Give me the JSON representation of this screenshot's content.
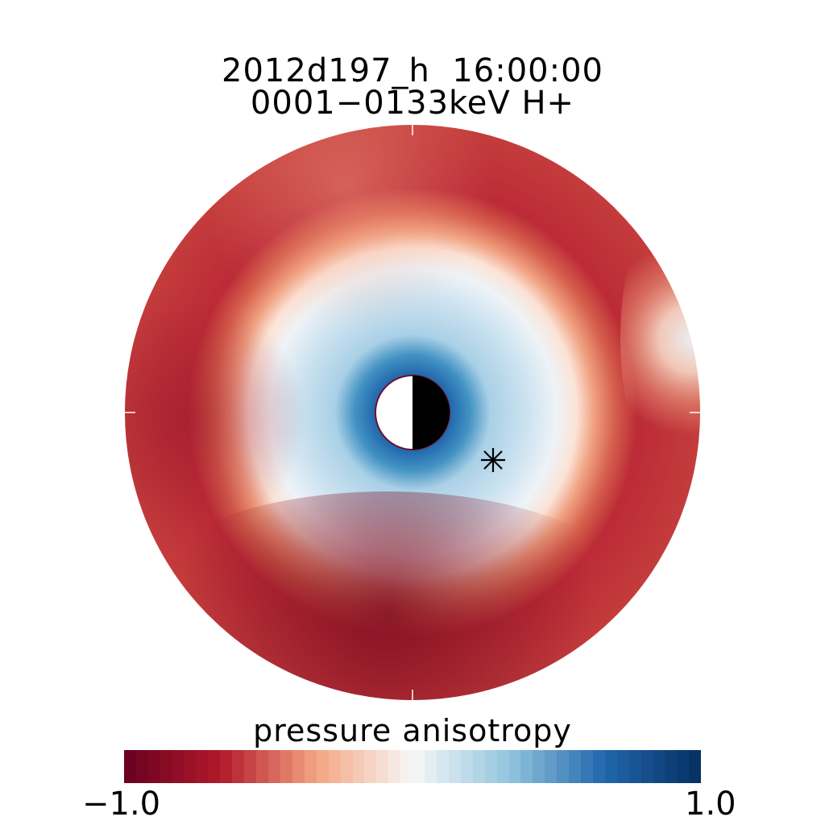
{
  "figure": {
    "title_line1": "2012d197_h  16:00:00",
    "title_line2": "0001−0133keV H+"
  },
  "chart_data": {
    "type": "heatmap",
    "projection": "polar equatorial plane",
    "title": "2012d197_h  16:00:00",
    "subtitle": "0001−0133keV H+",
    "colorbar": {
      "label": "pressure anisotropy",
      "min_label": "−1.0",
      "max_label": "1.0",
      "range": [
        -1.0,
        1.0
      ],
      "colormap": "red-white-blue (diverging)"
    },
    "colors": {
      "neg_dark": "#67001f",
      "neg_mid": "#b2182b",
      "neg_light": "#f4a582",
      "zero": "#f7f7f7",
      "pos_light": "#92c5de",
      "pos_mid": "#2166ac",
      "pos_dark": "#053061"
    },
    "features": {
      "earth_marker": "half-filled circle (night side black)",
      "satellite_marker": "asterisk",
      "grid": "off"
    }
  }
}
